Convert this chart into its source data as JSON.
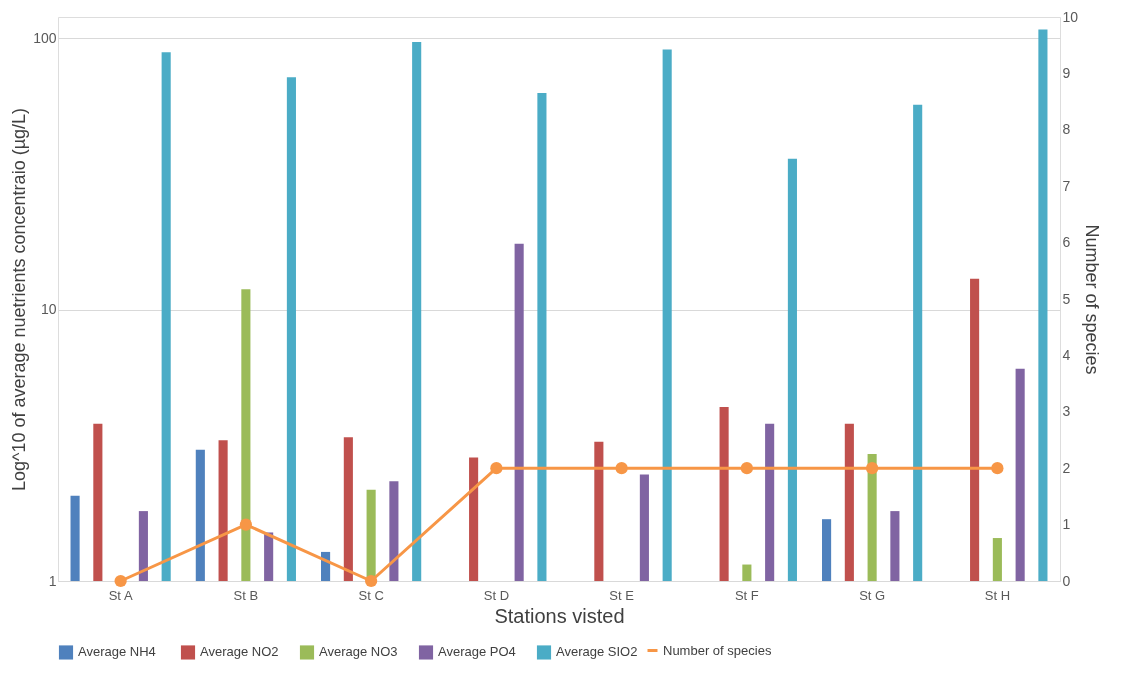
{
  "chart_data": {
    "type": "bar",
    "xlabel": "Stations visted",
    "ylabel": "Log^10 of average nuetrients concentraio (µg/L)",
    "y2label": "Number of species",
    "categories": [
      "St A",
      "St B",
      "St C",
      "St D",
      "St E",
      "St F",
      "St G",
      "St H"
    ],
    "series": [
      {
        "name": "Average  NH4",
        "color": "#4f81bd",
        "values": [
          2.06,
          3.05,
          1.28,
          null,
          null,
          null,
          1.69,
          null
        ]
      },
      {
        "name": "Average NO2",
        "color": "#c0504d",
        "values": [
          3.8,
          3.3,
          3.39,
          2.85,
          3.26,
          4.38,
          3.8,
          13.0
        ]
      },
      {
        "name": "Average NO3",
        "color": "#9bbb59",
        "values": [
          null,
          11.9,
          2.17,
          null,
          null,
          1.15,
          2.94,
          1.44
        ]
      },
      {
        "name": "Average PO4",
        "color": "#8064a2",
        "values": [
          1.81,
          1.51,
          2.33,
          17.5,
          2.47,
          3.8,
          1.81,
          6.06
        ]
      },
      {
        "name": "Average SIO2",
        "color": "#4bacc6",
        "values": [
          89,
          72,
          97,
          63,
          91,
          36,
          57,
          108
        ]
      },
      {
        "name": "Number of species",
        "color": "#f79646",
        "type": "line",
        "axis": "y2",
        "marker": "circle",
        "values": [
          0,
          1,
          0,
          2,
          2,
          2,
          2,
          2
        ]
      }
    ],
    "log": "y",
    "ylim": [
      1,
      120
    ],
    "yticks": [
      1,
      10,
      100
    ],
    "y2lim": [
      0,
      10
    ],
    "y2ticks": [
      0,
      1,
      2,
      3,
      4,
      5,
      6,
      7,
      8,
      9,
      10
    ],
    "grid": "y",
    "legend": "bottom"
  }
}
